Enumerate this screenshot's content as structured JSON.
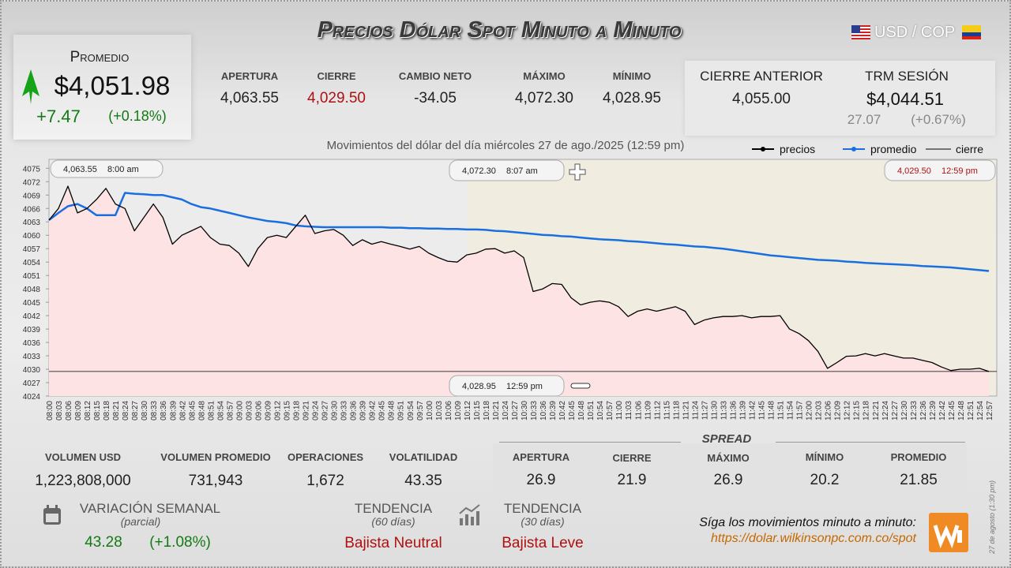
{
  "header": {
    "title": "Precios Dólar Spot Minuto a Minuto",
    "pair": "USD / COP"
  },
  "promedio": {
    "label": "Promedio",
    "value": "$4,051.98",
    "change": "+7.47",
    "change_pct": "(+0.18%)"
  },
  "session": [
    {
      "label": "APERTURA",
      "value": "4,063.55"
    },
    {
      "label": "CIERRE",
      "value": "4,029.50"
    },
    {
      "label": "CAMBIO NETO",
      "value": "-34.05"
    },
    {
      "label": "MÁXIMO",
      "value": "4,072.30"
    },
    {
      "label": "MÍNIMO",
      "value": "4,028.95"
    }
  ],
  "cierre_anterior": {
    "label": "CIERRE ANTERIOR",
    "value": "4,055.00"
  },
  "trm": {
    "label": "TRM SESIÓN",
    "value": "$4,044.51",
    "change": "27.07",
    "change_pct": "(+0.67%)"
  },
  "chart_data": {
    "type": "line",
    "subtitle": "Movimientos del dólar del día miércoles 27 de ago./2025 (12:59 pm)",
    "categories": [
      "08:00",
      "08:03",
      "08:06",
      "08:09",
      "08:12",
      "08:15",
      "08:18",
      "08:21",
      "08:24",
      "08:27",
      "08:30",
      "08:33",
      "08:36",
      "08:39",
      "08:42",
      "08:45",
      "08:48",
      "08:51",
      "08:54",
      "08:57",
      "09:00",
      "09:03",
      "09:06",
      "09:09",
      "09:12",
      "09:15",
      "09:18",
      "09:21",
      "09:24",
      "09:27",
      "09:30",
      "09:33",
      "09:36",
      "09:39",
      "09:42",
      "09:45",
      "09:48",
      "09:51",
      "09:54",
      "09:57",
      "10:00",
      "10:03",
      "10:06",
      "10:09",
      "10:12",
      "10:15",
      "10:18",
      "10:21",
      "10:24",
      "10:27",
      "10:30",
      "10:33",
      "10:36",
      "10:39",
      "10:42",
      "10:45",
      "10:48",
      "10:51",
      "10:54",
      "10:57",
      "11:00",
      "11:03",
      "11:06",
      "11:09",
      "11:12",
      "11:15",
      "11:18",
      "11:21",
      "11:24",
      "11:27",
      "11:30",
      "11:33",
      "11:36",
      "11:39",
      "11:42",
      "11:45",
      "11:48",
      "11:51",
      "11:54",
      "11:57",
      "12:00",
      "12:03",
      "12:06",
      "12:09",
      "12:12",
      "12:15",
      "12:18",
      "12:21",
      "12:24",
      "12:27",
      "12:30",
      "12:33",
      "12:36",
      "12:39",
      "12:42",
      "12:45",
      "12:48",
      "12:51",
      "12:54",
      "12:57"
    ],
    "series": [
      {
        "name": "precios",
        "color": "#000000",
        "values": [
          4063.4,
          4066,
          4071,
          4065,
          4066,
          4068,
          4070.5,
          4067,
          4066,
          4061,
          4064,
          4067,
          4064,
          4058,
          4060,
          4061,
          4062,
          4059.5,
          4058,
          4057.7,
          4056,
          4053,
          4057,
          4059.5,
          4060,
          4059.5,
          4062,
          4064.5,
          4060.4,
          4061,
          4061.3,
          4060,
          4057.7,
          4059,
          4058,
          4058.6,
          4058,
          4057.5,
          4056.9,
          4057.5,
          4056,
          4055,
          4054.2,
          4054,
          4055.6,
          4056,
          4056.9,
          4057,
          4056,
          4056.5,
          4055,
          4047.4,
          4048,
          4049.2,
          4049,
          4046,
          4044.4,
          4045,
          4045.3,
          4045,
          4044,
          4041.8,
          4043,
          4043.5,
          4043,
          4043.5,
          4044,
          4043,
          4040,
          4041,
          4041.5,
          4041.8,
          4041.8,
          4042,
          4041.5,
          4041.8,
          4041.8,
          4042,
          4039,
          4038,
          4036.4,
          4034,
          4030.2,
          4031.5,
          4032.9,
          4033,
          4033.5,
          4033,
          4033.5,
          4033,
          4032.5,
          4032.5,
          4032,
          4031.5,
          4030.5,
          4029.7,
          4030,
          4030,
          4030.2,
          4029.5
        ]
      },
      {
        "name": "promedio",
        "color": "#1a6fe0",
        "values": [
          4063.4,
          4065,
          4066.5,
          4067,
          4066,
          4064.5,
          4064.5,
          4064.5,
          4069.5,
          4069.3,
          4069.2,
          4069,
          4069,
          4068.5,
          4068,
          4067,
          4066.3,
          4066,
          4065.5,
          4065,
          4064.5,
          4064,
          4063.6,
          4063.2,
          4063,
          4062.7,
          4062.2,
          4062,
          4061.9,
          4061.8,
          4061.8,
          4061.8,
          4061.8,
          4061.8,
          4061.8,
          4061.8,
          4061.7,
          4061.7,
          4061.6,
          4061.6,
          4061.5,
          4061.5,
          4061.4,
          4061.4,
          4061.3,
          4061.3,
          4061.2,
          4061,
          4060.9,
          4060.7,
          4060.5,
          4060.3,
          4060.1,
          4060,
          4059.8,
          4059.7,
          4059.5,
          4059.3,
          4059.1,
          4059,
          4058.9,
          4058.7,
          4058.6,
          4058.4,
          4058.2,
          4058,
          4057.9,
          4057.7,
          4057.5,
          4057.4,
          4057.2,
          4057,
          4056.7,
          4056.4,
          4056.1,
          4055.8,
          4055.5,
          4055.3,
          4055.1,
          4054.9,
          4054.7,
          4054.5,
          4054.4,
          4054.3,
          4054.1,
          4054,
          4053.8,
          4053.7,
          4053.6,
          4053.5,
          4053.4,
          4053.3,
          4053.1,
          4053,
          4052.9,
          4052.8,
          4052.6,
          4052.4,
          4052.2,
          4052
        ]
      }
    ],
    "reference_lines": [
      {
        "name": "cierre",
        "value": 4029.5,
        "color": "#000000"
      }
    ],
    "area_color": "#fde3e3",
    "ylim": [
      4024,
      4077
    ],
    "yticks": [
      4024,
      4027,
      4030,
      4033,
      4036,
      4039,
      4042,
      4045,
      4048,
      4051,
      4054,
      4057,
      4060,
      4063,
      4066,
      4069,
      4072,
      4075
    ],
    "annotations": [
      {
        "value": "4,063.55",
        "time": "8:00 am"
      },
      {
        "value": "4,072.30",
        "time": "8:07 am"
      },
      {
        "value": "4,029.50",
        "time": "12:59 pm"
      },
      {
        "value": "4,028.95",
        "time": "12:59 pm"
      }
    ]
  },
  "volume_stats": [
    {
      "label": "VOLUMEN USD",
      "value": "1,223,808,000"
    },
    {
      "label": "VOLUMEN PROMEDIO",
      "value": "731,943"
    },
    {
      "label": "OPERACIONES",
      "value": "1,672"
    },
    {
      "label": "VOLATILIDAD",
      "value": "43.35"
    }
  ],
  "spread": {
    "title": "SPREAD",
    "items": [
      {
        "label": "APERTURA",
        "value": "26.9"
      },
      {
        "label": "CIERRE",
        "value": "21.9"
      },
      {
        "label": "MÁXIMO",
        "value": "26.9"
      },
      {
        "label": "MÍNIMO",
        "value": "20.2"
      },
      {
        "label": "PROMEDIO",
        "value": "21.85"
      }
    ]
  },
  "variacion": {
    "label": "VARIACIÓN SEMANAL",
    "note": "(parcial)",
    "value": "43.28",
    "pct": "(+1.08%)"
  },
  "tendencias": [
    {
      "label": "TENDENCIA",
      "note": "(60 días)",
      "value": "Bajista Neutral"
    },
    {
      "label": "TENDENCIA",
      "note": "(30 días)",
      "value": "Bajista Leve"
    }
  ],
  "footer": {
    "text": "Síga los movimientos minuto a minuto:",
    "url": "https://dolar.wilkinsonpc.com.co/spot",
    "side_note": "27 de agosto (1:30 pm)"
  }
}
